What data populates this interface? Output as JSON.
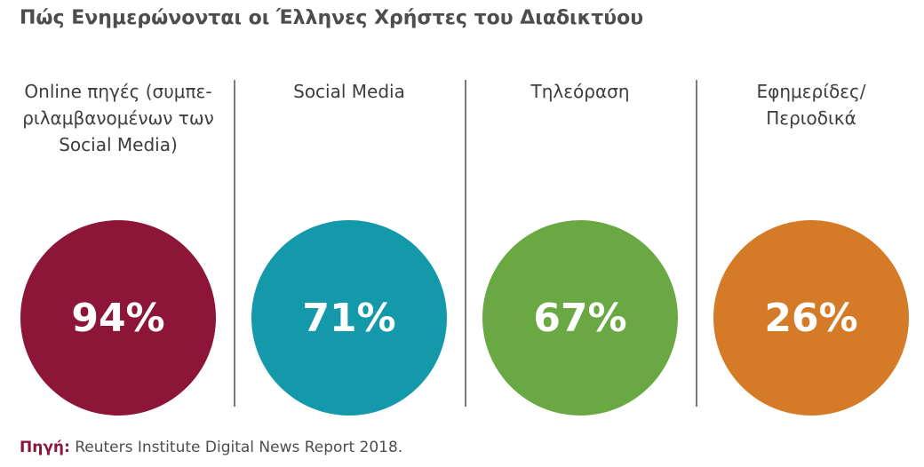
{
  "title": "Πώς Ενημερώνονται οι Έλληνες Χρήστες του Διαδικτύου",
  "source": {
    "label": "Πηγή:",
    "text": " Reuters Institute Digital News Report 2018."
  },
  "chart_data": {
    "type": "bar",
    "categories": [
      "Online πηγές (συμπε-ριλαμβανομένων των Social Media)",
      "Social Media",
      "Τηλεόραση",
      "Εφημερίδες/ Περιοδικά"
    ],
    "values": [
      94,
      71,
      67,
      26
    ],
    "value_labels": [
      "94%",
      "71%",
      "67%",
      "26%"
    ],
    "colors": [
      "#8c1538",
      "#1399a9",
      "#6aa843",
      "#d57a27"
    ],
    "label_lines": [
      [
        "Online πηγές (συμπε-",
        "ριλαμβανομένων των",
        "Social Media)"
      ],
      [
        "Social Media"
      ],
      [
        "Τηλεόραση"
      ],
      [
        "Εφημερίδες/",
        "Περιοδικά"
      ]
    ]
  }
}
